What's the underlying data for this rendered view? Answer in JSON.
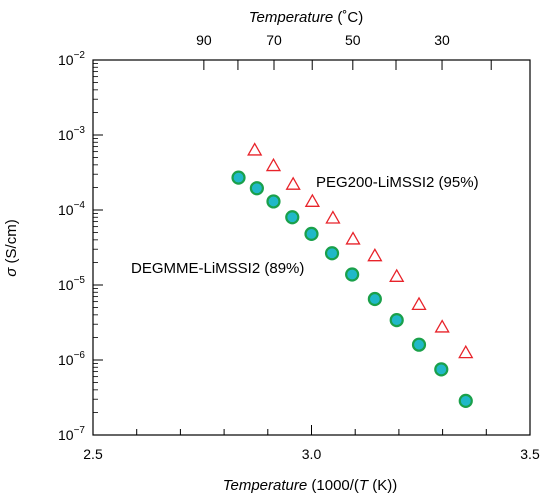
{
  "chart_data": {
    "type": "scatter",
    "x_axis": {
      "label_italic": "Temperature",
      "label_rest": " (1000/(",
      "label_T": "T",
      "label_end": " (K))",
      "range": [
        2.5,
        3.5
      ],
      "ticks": [
        "2.5",
        "3.0",
        "3.5"
      ]
    },
    "top_axis": {
      "label_italic": "Temperature",
      "label_rest": " (˚C)",
      "ticks": [
        "90",
        "70",
        "50",
        "30"
      ]
    },
    "y_axis": {
      "label_sigma": "σ",
      "label_rest": " (S/cm)",
      "scale": "log",
      "range": [
        1e-07,
        0.01
      ],
      "ticks": [
        {
          "base": "10",
          "exp": "−2"
        },
        {
          "base": "10",
          "exp": "−3"
        },
        {
          "base": "10",
          "exp": "−4"
        },
        {
          "base": "10",
          "exp": "−5"
        },
        {
          "base": "10",
          "exp": "−6"
        },
        {
          "base": "10",
          "exp": "−7"
        }
      ]
    },
    "series": [
      {
        "name": "PEG200-LiMSSI2 (95%)",
        "marker": "triangle",
        "color": "#e8232a",
        "points": [
          [
            2.87,
            0.00063
          ],
          [
            2.913,
            0.00039
          ],
          [
            2.958,
            0.00022
          ],
          [
            3.002,
            0.00013
          ],
          [
            3.049,
            7.8e-05
          ],
          [
            3.095,
            4.1e-05
          ],
          [
            3.145,
            2.45e-05
          ],
          [
            3.195,
            1.3e-05
          ],
          [
            3.246,
            5.5e-06
          ],
          [
            3.299,
            2.75e-06
          ],
          [
            3.353,
            1.25e-06
          ]
        ]
      },
      {
        "name": "DEGMME-LiMSSI2 (89%)",
        "marker": "circle",
        "color": "#20b8c8",
        "edge_color": "#1aa04a",
        "points": [
          [
            2.833,
            0.00027
          ],
          [
            2.875,
            0.000195
          ],
          [
            2.913,
            0.00013
          ],
          [
            2.956,
            8e-05
          ],
          [
            3.0,
            4.8e-05
          ],
          [
            3.047,
            2.65e-05
          ],
          [
            3.093,
            1.38e-05
          ],
          [
            3.145,
            6.5e-06
          ],
          [
            3.195,
            3.4e-06
          ],
          [
            3.246,
            1.6e-06
          ],
          [
            3.297,
            7.5e-07
          ],
          [
            3.353,
            2.85e-07
          ]
        ]
      }
    ]
  }
}
